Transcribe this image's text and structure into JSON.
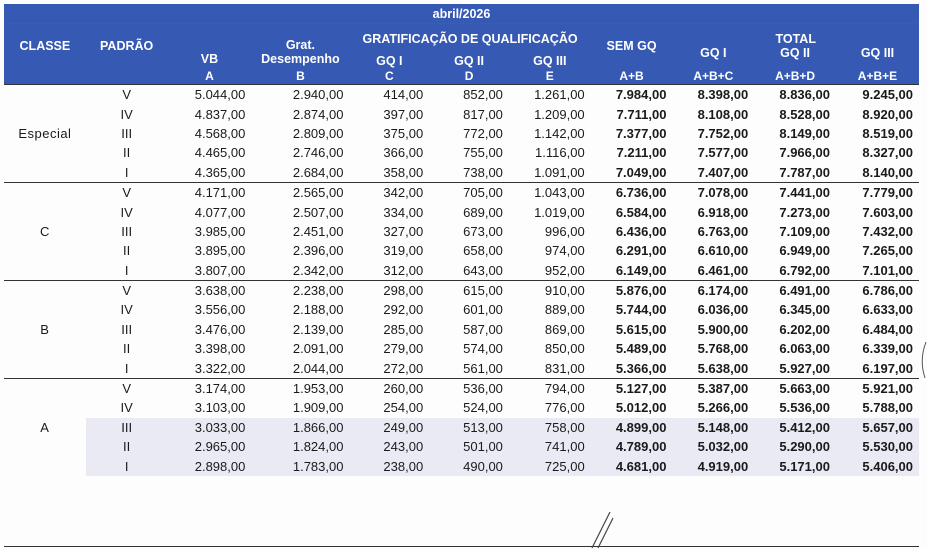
{
  "title": "abril/2026",
  "headers": {
    "classe": "CLASSE",
    "padrao": "PADRÃO",
    "vb": "VB",
    "grat_line1": "Grat.",
    "grat_line2": "Desempenho",
    "grat_qual": "GRATIFICAÇÃO DE QUALIFICAÇÃO",
    "gq1": "GQ I",
    "gq2": "GQ II",
    "gq3": "GQ III",
    "sem_gq": "SEM GQ",
    "total": "TOTAL",
    "tot_gq1": "GQ I",
    "tot_gq2": "GQ II",
    "tot_gq3": "GQ III",
    "code_vb": "A",
    "code_grat": "B",
    "code_gq1": "C",
    "code_gq2": "D",
    "code_gq3": "E",
    "code_sem": "A+B",
    "code_t1": "A+B+C",
    "code_t2": "A+B+D",
    "code_t3": "A+B+E"
  },
  "groups": [
    {
      "classe": "Especial",
      "rows": [
        [
          "V",
          "5.044,00",
          "2.940,00",
          "414,00",
          "852,00",
          "1.261,00",
          "7.984,00",
          "8.398,00",
          "8.836,00",
          "9.245,00"
        ],
        [
          "IV",
          "4.837,00",
          "2.874,00",
          "397,00",
          "817,00",
          "1.209,00",
          "7.711,00",
          "8.108,00",
          "8.528,00",
          "8.920,00"
        ],
        [
          "III",
          "4.568,00",
          "2.809,00",
          "375,00",
          "772,00",
          "1.142,00",
          "7.377,00",
          "7.752,00",
          "8.149,00",
          "8.519,00"
        ],
        [
          "II",
          "4.465,00",
          "2.746,00",
          "366,00",
          "755,00",
          "1.116,00",
          "7.211,00",
          "7.577,00",
          "7.966,00",
          "8.327,00"
        ],
        [
          "I",
          "4.365,00",
          "2.684,00",
          "358,00",
          "738,00",
          "1.091,00",
          "7.049,00",
          "7.407,00",
          "7.787,00",
          "8.140,00"
        ]
      ]
    },
    {
      "classe": "C",
      "rows": [
        [
          "V",
          "4.171,00",
          "2.565,00",
          "342,00",
          "705,00",
          "1.043,00",
          "6.736,00",
          "7.078,00",
          "7.441,00",
          "7.779,00"
        ],
        [
          "IV",
          "4.077,00",
          "2.507,00",
          "334,00",
          "689,00",
          "1.019,00",
          "6.584,00",
          "6.918,00",
          "7.273,00",
          "7.603,00"
        ],
        [
          "III",
          "3.985,00",
          "2.451,00",
          "327,00",
          "673,00",
          "996,00",
          "6.436,00",
          "6.763,00",
          "7.109,00",
          "7.432,00"
        ],
        [
          "II",
          "3.895,00",
          "2.396,00",
          "319,00",
          "658,00",
          "974,00",
          "6.291,00",
          "6.610,00",
          "6.949,00",
          "7.265,00"
        ],
        [
          "I",
          "3.807,00",
          "2.342,00",
          "312,00",
          "643,00",
          "952,00",
          "6.149,00",
          "6.461,00",
          "6.792,00",
          "7.101,00"
        ]
      ]
    },
    {
      "classe": "B",
      "rows": [
        [
          "V",
          "3.638,00",
          "2.238,00",
          "298,00",
          "615,00",
          "910,00",
          "5.876,00",
          "6.174,00",
          "6.491,00",
          "6.786,00"
        ],
        [
          "IV",
          "3.556,00",
          "2.188,00",
          "292,00",
          "601,00",
          "889,00",
          "5.744,00",
          "6.036,00",
          "6.345,00",
          "6.633,00"
        ],
        [
          "III",
          "3.476,00",
          "2.139,00",
          "285,00",
          "587,00",
          "869,00",
          "5.615,00",
          "5.900,00",
          "6.202,00",
          "6.484,00"
        ],
        [
          "II",
          "3.398,00",
          "2.091,00",
          "279,00",
          "574,00",
          "850,00",
          "5.489,00",
          "5.768,00",
          "6.063,00",
          "6.339,00"
        ],
        [
          "I",
          "3.322,00",
          "2.044,00",
          "272,00",
          "561,00",
          "831,00",
          "5.366,00",
          "5.638,00",
          "5.927,00",
          "6.197,00"
        ]
      ]
    },
    {
      "classe": "A",
      "rows": [
        [
          "V",
          "3.174,00",
          "1.953,00",
          "260,00",
          "536,00",
          "794,00",
          "5.127,00",
          "5.387,00",
          "5.663,00",
          "5.921,00"
        ],
        [
          "IV",
          "3.103,00",
          "1.909,00",
          "254,00",
          "524,00",
          "776,00",
          "5.012,00",
          "5.266,00",
          "5.536,00",
          "5.788,00"
        ],
        [
          "III",
          "3.033,00",
          "1.866,00",
          "249,00",
          "513,00",
          "758,00",
          "4.899,00",
          "5.148,00",
          "5.412,00",
          "5.657,00"
        ],
        [
          "II",
          "2.965,00",
          "1.824,00",
          "243,00",
          "501,00",
          "741,00",
          "4.789,00",
          "5.032,00",
          "5.290,00",
          "5.530,00"
        ],
        [
          "I",
          "2.898,00",
          "1.783,00",
          "238,00",
          "490,00",
          "725,00",
          "4.681,00",
          "4.919,00",
          "5.171,00",
          "5.406,00"
        ]
      ]
    }
  ]
}
